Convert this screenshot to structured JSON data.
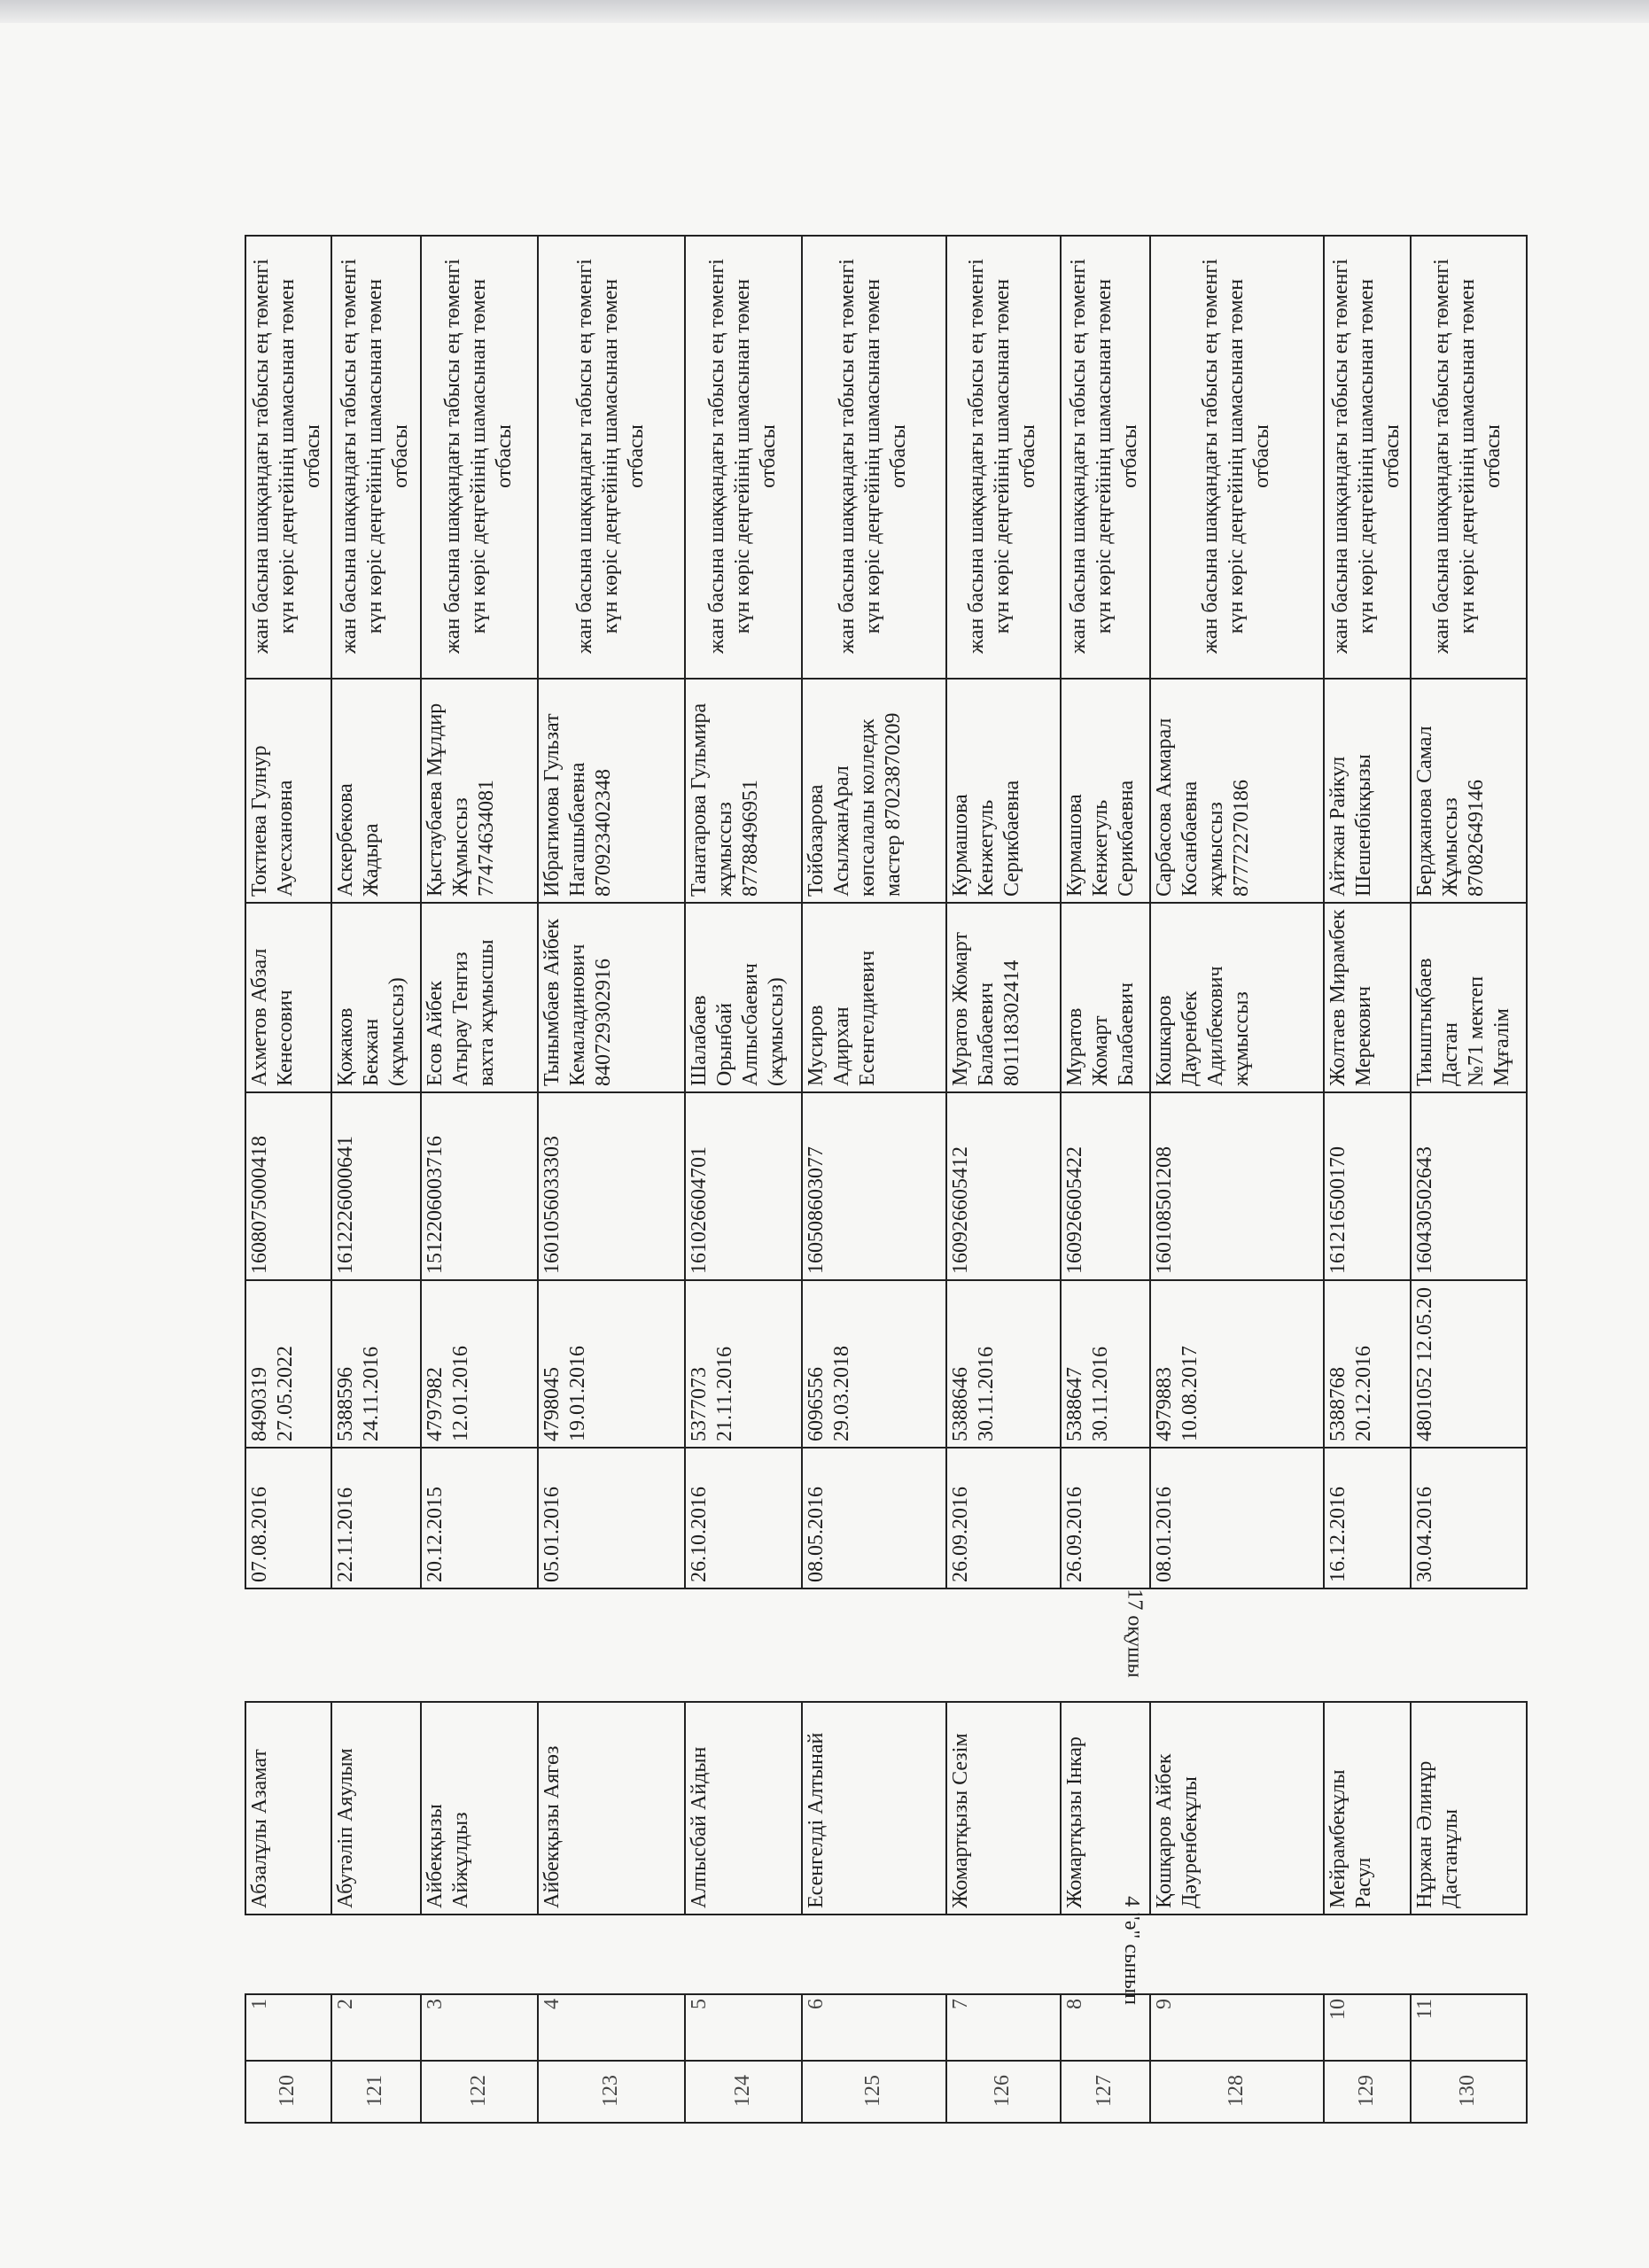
{
  "labels": {
    "student_count": "17 оқушы",
    "class_label": "4 \"ә\" сынып"
  },
  "description": "жан басына шаққандағы табысы ең төменгі\nкүн көріс деңгейінің шамасынан төмен\nотбасы",
  "rows": [
    {
      "index": "120",
      "num": "1",
      "name": "Абзалұлы  Азамат",
      "birth_date": "07.08.2016",
      "certificate": "8490319\n27.05.2022",
      "iin": "1608075000418",
      "father": "Ахметов Абзал\nКенесович",
      "mother": "Токтиева Гулнур\nАуесхановна"
    },
    {
      "index": "121",
      "num": "2",
      "name": "Абутәліп Аяулым",
      "birth_date": "22.11.2016",
      "certificate": "5388596\n24.11.2016",
      "iin": "1612226000641",
      "father": "Қожаков\nБекжан (жұмыссыз)",
      "mother": "Аскербекова\nЖадыра"
    },
    {
      "index": "122",
      "num": "3",
      "name": "Айбекқызы\nАйжұлдыз",
      "birth_date": "20.12.2015",
      "certificate": "4797982\n12.01.2016",
      "iin": "1512206003716",
      "father": "Есов Айбек\nАтырау Тенгиз\nвахта жұмысшы",
      "mother": "Қыстаубаева Мұлдир\nЖұмыссыз\n77474634081"
    },
    {
      "index": "123",
      "num": "4",
      "name": "Айбекқызы Аягөз",
      "birth_date": "05.01.2016",
      "certificate": "4798045\n19.01.2016",
      "iin": "1601056033303",
      "father": "Тынымбаев Айбек\nКемаладинович\n840729302916",
      "mother": "Ибрагимова Гульзат\nНагашыбаевна\n870923402348"
    },
    {
      "index": "124",
      "num": "5",
      "name": "Алпысбай Айдын",
      "birth_date": "26.10.2016",
      "certificate": "5377073\n21.11.2016",
      "iin": "161026604701",
      "father": "Шалабаев Орынбай\nАлпысбаевич\n(жұмыссыз)",
      "mother": "Танатарова Гульмира\nжұмыссыз\n87788496951"
    },
    {
      "index": "125",
      "num": "6",
      "name": "Есенгелді Алтынай",
      "birth_date": "08.05.2016",
      "certificate": "6096556\n29.03.2018",
      "iin": "160508603077",
      "father": "Мусиров\nАдирхан\nЕсенгелдиевич",
      "mother": "Тойбазарова\nАсылжанАрал\nкөпсалалы колледж\nмастер 87023870209"
    },
    {
      "index": "126",
      "num": "7",
      "name": "Жомартқызы Сезім",
      "birth_date": "26.09.2016",
      "certificate": "5388646\n30.11.2016",
      "iin": "160926605412",
      "father": "Муратов Жомарт\nБалабаевич\n801118302414",
      "mother": "Курмашова\nКенжегуль\nСерикбаевна"
    },
    {
      "index": "127",
      "num": "8",
      "name": "Жомартқызы Інкар",
      "birth_date": "26.09.2016",
      "certificate": "5388647\n30.11.2016",
      "iin": "160926605422",
      "father": "Муратов\nЖомарт Балабаевич",
      "mother": "Курмашова\nКенжегуль\nСерикбаевна"
    },
    {
      "index": "128",
      "num": "9",
      "name": "Қошқаров Айбек\nДәуренбекұлы",
      "birth_date": "08.01.2016",
      "certificate": "4979883\n10.08.2017",
      "iin": "160108501208",
      "father": "Кошкаров\nДауренбек\nАдилбекович\nжұмыссыз",
      "mother": "Сарбасова Акмарал\nКосанбаевна\nжұмыссыз\n87772270186"
    },
    {
      "index": "129",
      "num": "10",
      "name": "Мейрамбекұлы\nРасул",
      "birth_date": "16.12.2016",
      "certificate": "5388768\n20.12.2016",
      "iin": "161216500170",
      "father": "Жолтаев Мирамбек\nМерекович",
      "mother": "Айтжан Райкул\nШешенбікқызы"
    },
    {
      "index": "130",
      "num": "11",
      "name": "Нұржан Әлинұр\nДастанұлы",
      "birth_date": "30.04.2016",
      "certificate": "4801052 12.05.20",
      "iin": "160430502643",
      "father": "Тиыштықбаев\nДастан\n№71 мектеп\nМұғалім",
      "mother": "Берджанова Самал\nЖұмыссыз\n87082649146"
    }
  ]
}
